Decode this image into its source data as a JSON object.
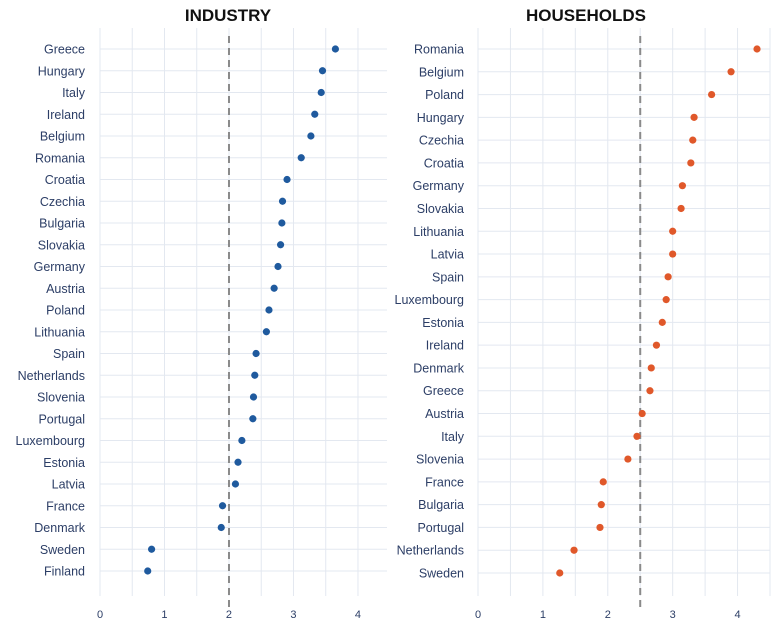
{
  "chart_data": [
    {
      "type": "scatter",
      "title": "INDUSTRY",
      "categories": [
        "Greece",
        "Hungary",
        "Italy",
        "Ireland",
        "Belgium",
        "Romania",
        "Croatia",
        "Czechia",
        "Bulgaria",
        "Slovakia",
        "Germany",
        "Austria",
        "Poland",
        "Lithuania",
        "Spain",
        "Netherlands",
        "Slovenia",
        "Portugal",
        "Luxembourg",
        "Estonia",
        "Latvia",
        "France",
        "Denmark",
        "Sweden",
        "Finland"
      ],
      "values": [
        3.65,
        3.45,
        3.43,
        3.33,
        3.27,
        3.12,
        2.9,
        2.83,
        2.82,
        2.8,
        2.76,
        2.7,
        2.62,
        2.58,
        2.42,
        2.4,
        2.38,
        2.37,
        2.2,
        2.14,
        2.1,
        1.9,
        1.88,
        0.8,
        0.74
      ],
      "xlim": [
        0,
        4.45
      ],
      "xticks": [
        "0",
        "1",
        "2",
        "3",
        "4"
      ],
      "reference_line": 2,
      "color": "#1f5a9e",
      "grid": true
    },
    {
      "type": "scatter",
      "title": "HOUSEHOLDS",
      "categories": [
        "Romania",
        "Belgium",
        "Poland",
        "Hungary",
        "Czechia",
        "Croatia",
        "Germany",
        "Slovakia",
        "Lithuania",
        "Latvia",
        "Spain",
        "Luxembourg",
        "Estonia",
        "Ireland",
        "Denmark",
        "Greece",
        "Austria",
        "Italy",
        "Slovenia",
        "France",
        "Bulgaria",
        "Portugal",
        "Netherlands",
        "Sweden"
      ],
      "values": [
        4.3,
        3.9,
        3.6,
        3.33,
        3.31,
        3.28,
        3.15,
        3.13,
        3.0,
        3.0,
        2.93,
        2.9,
        2.84,
        2.75,
        2.67,
        2.65,
        2.53,
        2.45,
        2.31,
        1.93,
        1.9,
        1.88,
        1.48,
        1.26
      ],
      "xlim": [
        0,
        4.5
      ],
      "xticks": [
        "0",
        "1",
        "2",
        "3",
        "4"
      ],
      "reference_line": 2.5,
      "color": "#e0582a",
      "grid": true
    }
  ]
}
